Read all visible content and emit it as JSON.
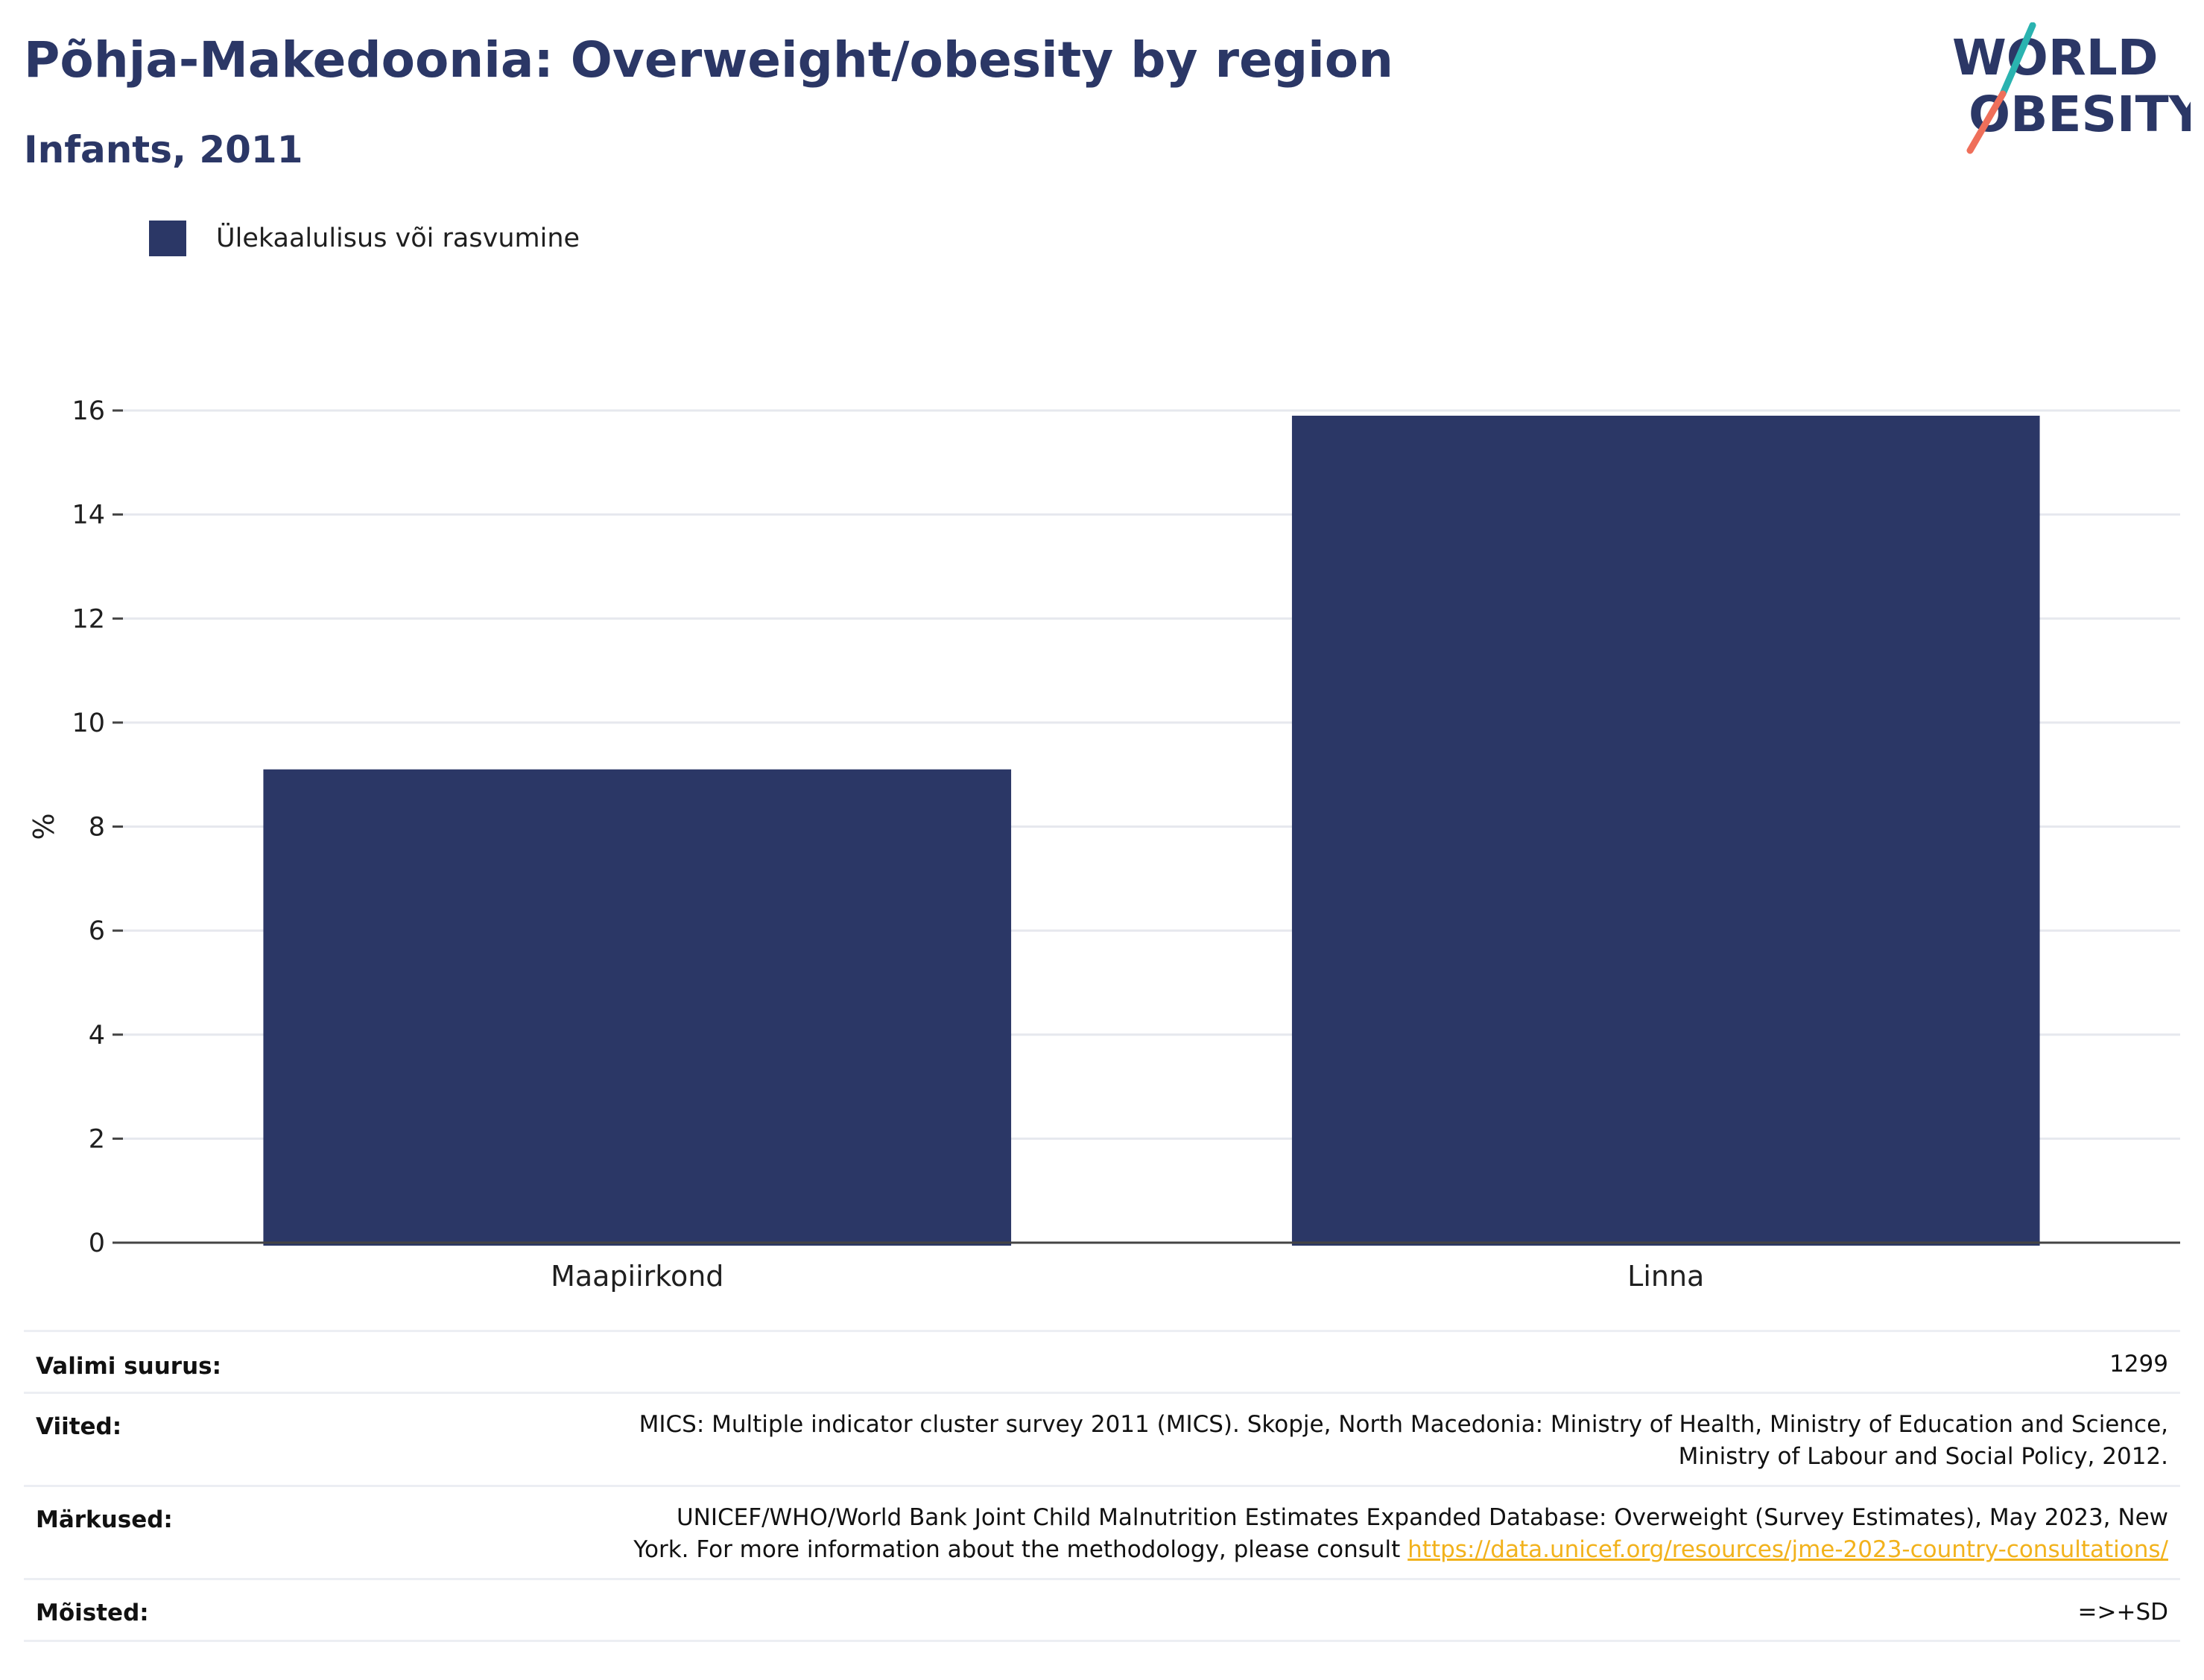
{
  "header": {
    "title": "Põhja-Makedoonia: Overweight/obesity by region",
    "subtitle": "Infants, 2011"
  },
  "logo": {
    "line1": "WORLD",
    "line2": "OBESITY"
  },
  "legend": {
    "label": "Ülekaalulisus või rasvumine",
    "color": "#2b3766"
  },
  "chart_data": {
    "type": "bar",
    "categories": [
      "Maapiirkond",
      "Linna"
    ],
    "series": [
      {
        "name": "Ülekaalulisus või rasvumine",
        "values": [
          9.1,
          15.9
        ],
        "color": "#2b3766"
      }
    ],
    "ylabel": "%",
    "ylim": [
      0,
      16
    ],
    "yticks": [
      0,
      2,
      4,
      6,
      8,
      10,
      12,
      14,
      16
    ],
    "grid": true,
    "legend_position": "top-left"
  },
  "footer": {
    "sample": {
      "label": "Valimi suurus:",
      "value": "1299"
    },
    "references": {
      "label": "Viited:",
      "line1": "MICS: Multiple indicator cluster survey 2011 (MICS). Skopje, North Macedonia: Ministry of Health, Ministry of Education and Science,",
      "line2": "Ministry of Labour and Social Policy, 2012."
    },
    "notes": {
      "label": "Märkused:",
      "line1": "UNICEF/WHO/World Bank Joint Child Malnutrition Estimates Expanded Database: Overweight (Survey Estimates), May 2023, New",
      "line2": "York. For more information about the methodology, please consult",
      "link": "https://data.unicef.org/resources/jme-2023-country-consultations/"
    },
    "definitions": {
      "label": "Mõisted:",
      "value": "=>+SD"
    }
  }
}
